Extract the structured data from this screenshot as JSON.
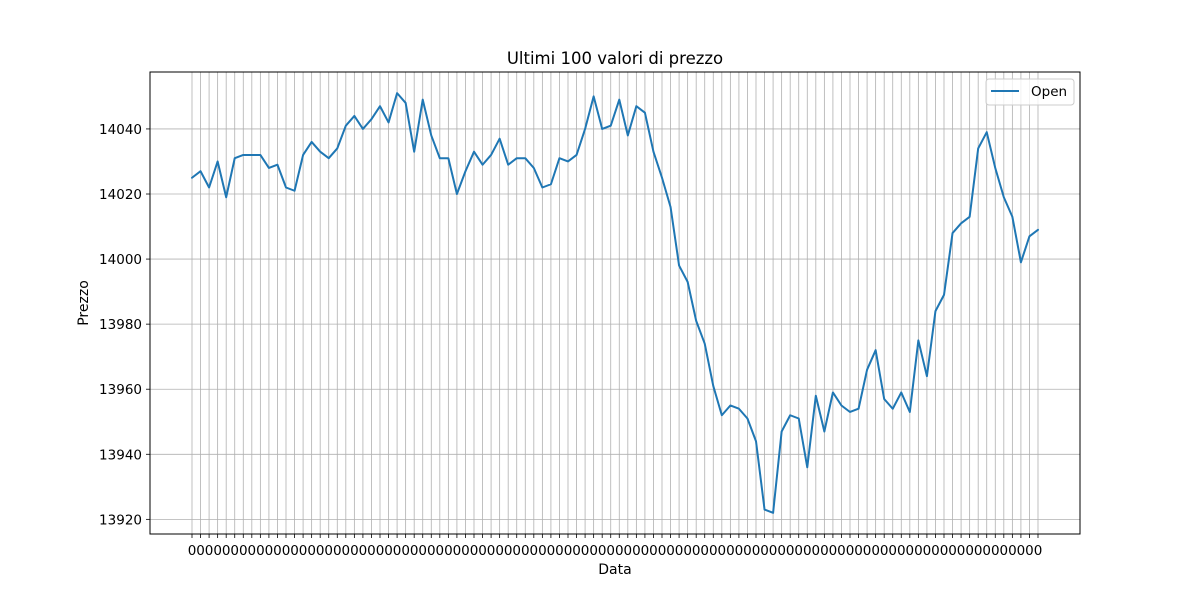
{
  "chart_data": {
    "type": "line",
    "title": "Ultimi 100 valori di prezzo",
    "xlabel": "Data",
    "ylabel": "Prezzo",
    "ylim": [
      13915.5,
      14057.5
    ],
    "yticks": [
      13920,
      13940,
      13960,
      13980,
      14000,
      14020,
      14040
    ],
    "grid": true,
    "legend": "top-right",
    "x_tick_label_text": "0000000000000000000000000000000000000000000000000000000000000000000000000000000000000000000000000000",
    "series": [
      {
        "name": "Open",
        "color": "#1f77b4",
        "values": [
          14025,
          14027,
          14022,
          14030,
          14019,
          14031,
          14032,
          14032,
          14032,
          14028,
          14029,
          14022,
          14021,
          14032,
          14036,
          14033,
          14031,
          14034,
          14041,
          14044,
          14040,
          14043,
          14047,
          14042,
          14051,
          14048,
          14033,
          14049,
          14038,
          14031,
          14031,
          14020,
          14027,
          14033,
          14029,
          14032,
          14037,
          14029,
          14031,
          14031,
          14028,
          14022,
          14023,
          14031,
          14030,
          14032,
          14040,
          14050,
          14040,
          14041,
          14049,
          14038,
          14047,
          14045,
          14033,
          14025,
          14016,
          13998,
          13993,
          13981,
          13974,
          13961,
          13952,
          13955,
          13954,
          13951,
          13944,
          13923,
          13922,
          13947,
          13952,
          13951,
          13936,
          13958,
          13947,
          13959,
          13955,
          13953,
          13954,
          13966,
          13972,
          13957,
          13954,
          13959,
          13953,
          13975,
          13964,
          13984,
          13989,
          14008,
          14011,
          14013,
          14034,
          14039,
          14028,
          14019,
          14013,
          13999,
          14007,
          14009
        ]
      }
    ]
  }
}
